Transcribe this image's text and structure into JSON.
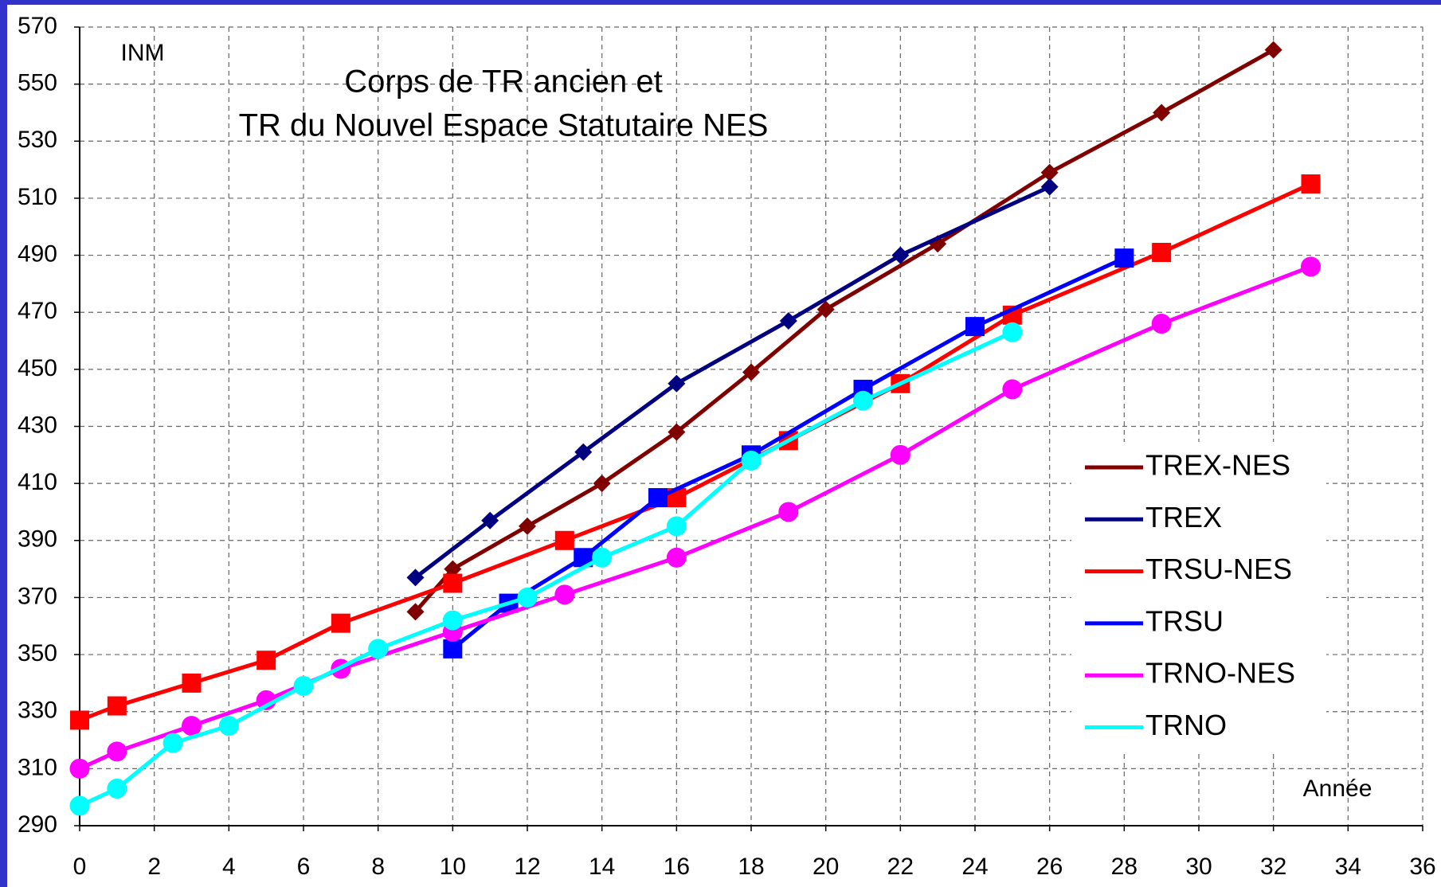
{
  "chart_data": {
    "type": "line",
    "title": [
      "Corps de TR ancien et",
      "TR du Nouvel Espace Statutaire NES"
    ],
    "y_label": "INM",
    "x_label": "Année",
    "xlim": [
      0,
      36
    ],
    "xticks": [
      0,
      2,
      4,
      6,
      8,
      10,
      12,
      14,
      16,
      18,
      20,
      22,
      24,
      26,
      28,
      30,
      32,
      34,
      36
    ],
    "ylim": [
      290,
      570
    ],
    "yticks": [
      290,
      310,
      330,
      350,
      370,
      390,
      410,
      430,
      450,
      470,
      490,
      510,
      530,
      550,
      570
    ],
    "grid": true,
    "legend": "right",
    "series": [
      {
        "name": "TREX-NES",
        "color": "#800000",
        "marker": "diamond",
        "x": [
          9,
          10,
          12,
          14,
          16,
          18,
          20,
          23,
          26,
          29,
          32
        ],
        "values": [
          365,
          380,
          395,
          410,
          428,
          449,
          471,
          494,
          519,
          540,
          562
        ]
      },
      {
        "name": "TREX",
        "color": "#000080",
        "marker": "diamond",
        "x": [
          9,
          11,
          13.5,
          16,
          19,
          22,
          26
        ],
        "values": [
          377,
          397,
          421,
          445,
          467,
          490,
          514
        ]
      },
      {
        "name": "TRSU-NES",
        "color": "#ff0000",
        "marker": "square",
        "x": [
          0,
          1,
          3,
          5,
          7,
          10,
          13,
          16,
          19,
          22,
          25,
          29,
          33
        ],
        "values": [
          327,
          332,
          340,
          348,
          361,
          375,
          390,
          405,
          425,
          445,
          469,
          491,
          515
        ]
      },
      {
        "name": "TRSU",
        "color": "#0000ff",
        "marker": "square",
        "x": [
          10,
          11.5,
          13.5,
          15.5,
          18,
          21,
          24,
          28
        ],
        "values": [
          352,
          368,
          384,
          405,
          420,
          443,
          465,
          489
        ]
      },
      {
        "name": "TRNO-NES",
        "color": "#ff00ff",
        "marker": "circle",
        "x": [
          0,
          1,
          3,
          5,
          7,
          10,
          13,
          16,
          19,
          22,
          25,
          29,
          33
        ],
        "values": [
          310,
          316,
          325,
          334,
          345,
          358,
          371,
          384,
          400,
          420,
          443,
          466,
          486
        ]
      },
      {
        "name": "TRNO",
        "color": "#00ffff",
        "marker": "circle",
        "x": [
          0,
          1,
          2.5,
          4,
          6,
          8,
          10,
          12,
          14,
          16,
          18,
          21,
          25
        ],
        "values": [
          297,
          303,
          319,
          325,
          339,
          352,
          362,
          370,
          384,
          395,
          418,
          439,
          463
        ]
      }
    ]
  }
}
